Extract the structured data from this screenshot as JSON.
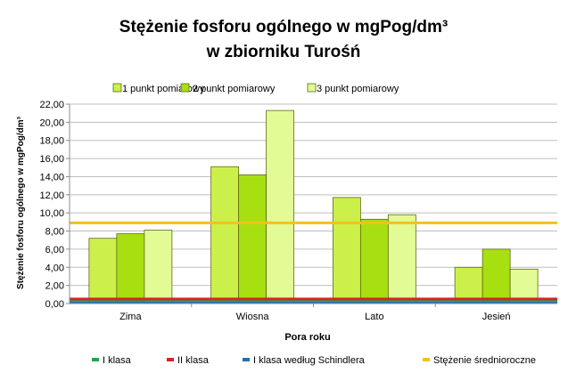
{
  "chart_data": {
    "type": "bar",
    "title_line1": "Stężenie fosforu ogólnego w mgPog/dm³",
    "title_line2": "w zbiorniku Turośń",
    "xlabel": "Pora roku",
    "ylabel": "Stężenie fosforu ogólnego w mgPog/dm³",
    "categories": [
      "Zima",
      "Wiosna",
      "Lato",
      "Jesień"
    ],
    "ylim": [
      0,
      22
    ],
    "ytick_step": 2,
    "ytick_labels": [
      "0,00",
      "2,00",
      "4,00",
      "6,00",
      "8,00",
      "10,00",
      "12,00",
      "14,00",
      "16,00",
      "18,00",
      "20,00",
      "22,00"
    ],
    "grid": true,
    "legend_top_placement": "top",
    "legend_bottom_placement": "bottom",
    "series": [
      {
        "name": "1 punkt pomiarowy",
        "color": "#ccf04a",
        "values": [
          7.2,
          15.1,
          11.7,
          4.0
        ]
      },
      {
        "name": "2 punkt pomiarowy",
        "color": "#a8df10",
        "values": [
          7.7,
          14.2,
          9.3,
          6.0
        ]
      },
      {
        "name": "3 punkt pomiarowy",
        "color": "#e2fb94",
        "values": [
          8.1,
          21.3,
          9.8,
          3.8
        ]
      }
    ],
    "reference_lines": [
      {
        "name": "I klasa",
        "color": "#1aa84a",
        "value": 0.4
      },
      {
        "name": "II klasa",
        "color": "#e02020",
        "value": 0.5
      },
      {
        "name": "I klasa według Schindlera",
        "color": "#1f6fb4",
        "value": 0.1
      },
      {
        "name": "Stężenie średnioroczne",
        "color": "#f2c21c",
        "value": 8.9
      }
    ]
  }
}
